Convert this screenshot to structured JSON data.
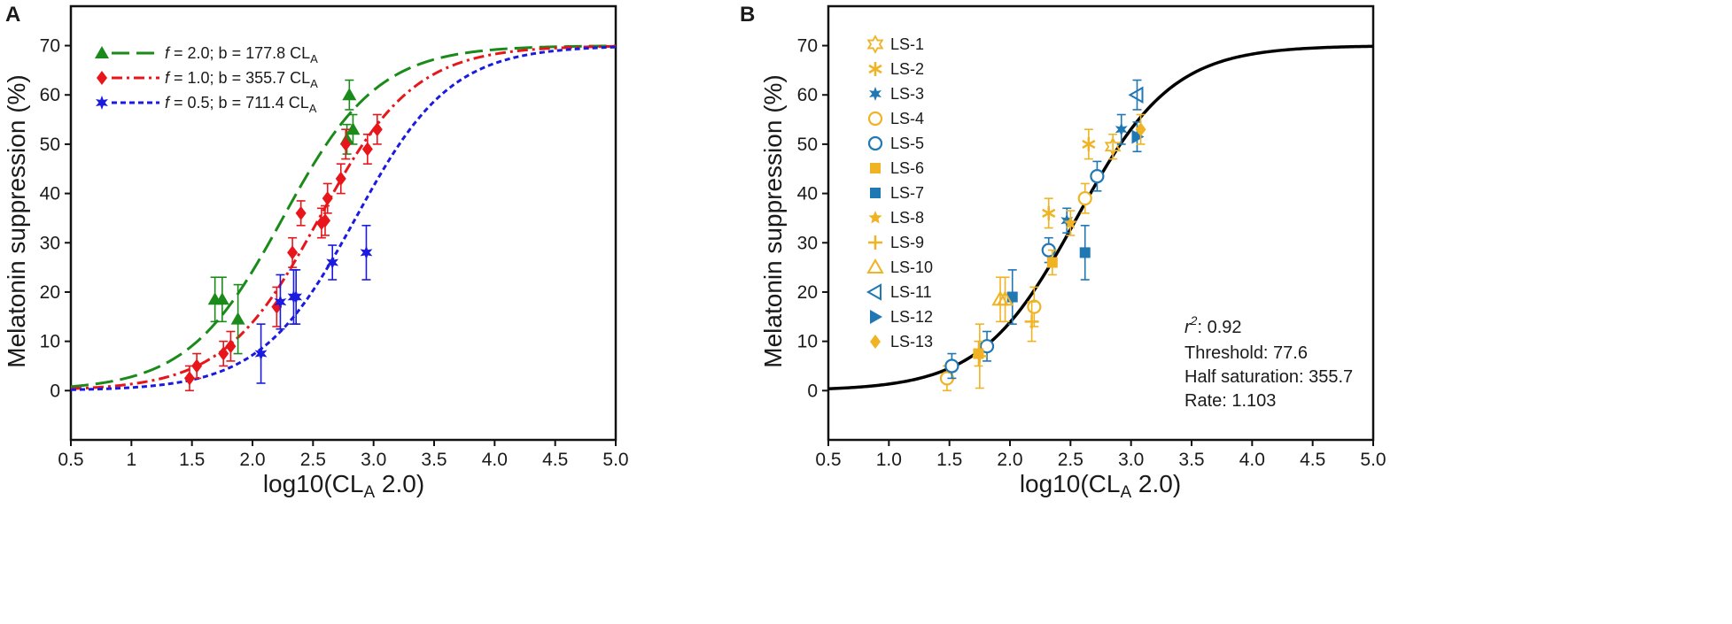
{
  "chart_data": [
    {
      "panel": "A",
      "type": "scatter",
      "xlabel": "log10(CLA 2.0)",
      "ylabel": "Melatonin suppression (%)",
      "xlim": [
        0.5,
        5.0
      ],
      "ylim": [
        -10,
        78
      ],
      "xticks": [
        "0.5",
        "1",
        "1.5",
        "2.0",
        "2.5",
        "3.0",
        "3.5",
        "4.0",
        "4.5",
        "5.0"
      ],
      "yticks": [
        "0",
        "10",
        "20",
        "30",
        "40",
        "50",
        "60",
        "70"
      ],
      "legend_position": "top-left",
      "curve_model": {
        "max": 70,
        "rate": 1.103
      },
      "series": [
        {
          "label": "f = 2.0; b = 177.8 CLA",
          "label_parts": [
            "f",
            " = 2.0; b = 177.8 CL",
            "A"
          ],
          "half_saturation": 177.8,
          "color": "#1a8a1a",
          "marker": "triangle",
          "dash": "long-dash",
          "points": [
            {
              "x": 1.69,
              "y": 18.5,
              "err": 4.5
            },
            {
              "x": 1.75,
              "y": 18.5,
              "err": 4.5
            },
            {
              "x": 1.88,
              "y": 14.5,
              "err": 7
            },
            {
              "x": 2.78,
              "y": 51,
              "err": 3
            },
            {
              "x": 2.8,
              "y": 60,
              "err": 3
            },
            {
              "x": 2.83,
              "y": 53,
              "err": 3
            }
          ]
        },
        {
          "label": "f = 1.0; b = 355.7 CLA",
          "label_parts": [
            "f",
            " = 1.0; b = 355.7 CL",
            "A"
          ],
          "half_saturation": 355.7,
          "color": "#e8161b",
          "marker": "diamond",
          "dash": "dash-dot",
          "points": [
            {
              "x": 1.48,
              "y": 2.5,
              "err": 2.5
            },
            {
              "x": 1.54,
              "y": 5,
              "err": 2.5
            },
            {
              "x": 1.76,
              "y": 7.5,
              "err": 2.5
            },
            {
              "x": 1.82,
              "y": 9,
              "err": 3
            },
            {
              "x": 2.2,
              "y": 17,
              "err": 4
            },
            {
              "x": 2.33,
              "y": 28,
              "err": 3
            },
            {
              "x": 2.4,
              "y": 36,
              "err": 2.5
            },
            {
              "x": 2.57,
              "y": 34,
              "err": 3
            },
            {
              "x": 2.6,
              "y": 34.5,
              "err": 3
            },
            {
              "x": 2.62,
              "y": 39,
              "err": 3
            },
            {
              "x": 2.73,
              "y": 43,
              "err": 3
            },
            {
              "x": 2.77,
              "y": 50,
              "err": 3
            },
            {
              "x": 2.95,
              "y": 49,
              "err": 3
            },
            {
              "x": 3.03,
              "y": 53,
              "err": 3
            }
          ]
        },
        {
          "label": "f = 0.5; b = 711.4 CLA",
          "label_parts": [
            "f",
            " = 0.5; b = 711.4 CL",
            "A"
          ],
          "half_saturation": 711.4,
          "color": "#1a1ae0",
          "marker": "star",
          "dash": "dotted",
          "points": [
            {
              "x": 2.07,
              "y": 7.5,
              "err": 6
            },
            {
              "x": 2.23,
              "y": 18,
              "err": 5.5
            },
            {
              "x": 2.34,
              "y": 19,
              "err": 5.5
            },
            {
              "x": 2.36,
              "y": 19,
              "err": 5.5
            },
            {
              "x": 2.66,
              "y": 26,
              "err": 3.5
            },
            {
              "x": 2.94,
              "y": 28,
              "err": 5.5
            }
          ]
        }
      ]
    },
    {
      "panel": "B",
      "type": "scatter",
      "xlabel": "log10(CLA 2.0)",
      "ylabel": "Melatonin suppression (%)",
      "xlim": [
        0.5,
        5.0
      ],
      "ylim": [
        -10,
        78
      ],
      "xticks": [
        "0.5",
        "1.0",
        "1.5",
        "2.0",
        "2.5",
        "3.0",
        "3.5",
        "4.0",
        "4.5",
        "5.0"
      ],
      "yticks": [
        "0",
        "10",
        "20",
        "30",
        "40",
        "50",
        "60",
        "70"
      ],
      "legend_position": "top-left",
      "fit": {
        "max": 70,
        "half_saturation": 355.7,
        "rate": 1.103,
        "color": "#000000"
      },
      "stats": {
        "r2_label": "r",
        "r2_sup": "2",
        "r2_value": ": 0.92",
        "threshold": "Threshold: 77.6",
        "half_saturation": "Half saturation: 355.7",
        "rate": "Rate: 1.103"
      },
      "series": [
        {
          "label": "LS-1",
          "color": "#f0b323",
          "marker": "hexagram-open",
          "points": [
            {
              "x": 2.85,
              "y": 49.5,
              "err": 2.5
            }
          ]
        },
        {
          "label": "LS-2",
          "color": "#f0b323",
          "marker": "asterisk",
          "points": [
            {
              "x": 2.32,
              "y": 36,
              "err": 3
            },
            {
              "x": 2.65,
              "y": 50,
              "err": 3
            }
          ]
        },
        {
          "label": "LS-3",
          "color": "#1f77b4",
          "marker": "star6",
          "points": [
            {
              "x": 2.47,
              "y": 34.5,
              "err": 2.5
            },
            {
              "x": 2.92,
              "y": 53,
              "err": 3
            }
          ]
        },
        {
          "label": "LS-4",
          "color": "#f0b323",
          "marker": "circle-open",
          "points": [
            {
              "x": 1.48,
              "y": 2.5,
              "err": 2.5
            },
            {
              "x": 2.2,
              "y": 17,
              "err": 4
            },
            {
              "x": 2.62,
              "y": 39,
              "err": 3
            }
          ]
        },
        {
          "label": "LS-5",
          "color": "#1f77b4",
          "marker": "circle-open",
          "points": [
            {
              "x": 1.52,
              "y": 5,
              "err": 2.5
            },
            {
              "x": 1.81,
              "y": 9,
              "err": 3
            },
            {
              "x": 2.32,
              "y": 28.5,
              "err": 2.5
            },
            {
              "x": 2.72,
              "y": 43.5,
              "err": 3
            }
          ]
        },
        {
          "label": "LS-6",
          "color": "#f0b323",
          "marker": "square",
          "points": [
            {
              "x": 1.74,
              "y": 7.5,
              "err": 2.5
            },
            {
              "x": 2.35,
              "y": 26,
              "err": 2.5
            }
          ]
        },
        {
          "label": "LS-7",
          "color": "#1f77b4",
          "marker": "square",
          "points": [
            {
              "x": 2.02,
              "y": 19,
              "err": 5.5
            },
            {
              "x": 2.62,
              "y": 28,
              "err": 5.5
            }
          ]
        },
        {
          "label": "LS-8",
          "color": "#f0b323",
          "marker": "star5",
          "points": [
            {
              "x": 2.5,
              "y": 34,
              "err": 2.5
            }
          ]
        },
        {
          "label": "LS-9",
          "color": "#f0b323",
          "marker": "plus",
          "points": [
            {
              "x": 1.75,
              "y": 7,
              "err": 6.5
            },
            {
              "x": 2.18,
              "y": 14,
              "err": 4
            }
          ]
        },
        {
          "label": "LS-10",
          "color": "#f0b323",
          "marker": "triangle-open",
          "points": [
            {
              "x": 1.92,
              "y": 18.5,
              "err": 4.5
            },
            {
              "x": 1.96,
              "y": 18.5,
              "err": 4.5
            }
          ]
        },
        {
          "label": "LS-11",
          "color": "#1f77b4",
          "marker": "triangle-left-open",
          "points": [
            {
              "x": 3.05,
              "y": 60,
              "err": 3
            }
          ]
        },
        {
          "label": "LS-12",
          "color": "#1f77b4",
          "marker": "triangle-right",
          "points": [
            {
              "x": 3.05,
              "y": 51.5,
              "err": 3
            }
          ]
        },
        {
          "label": "LS-13",
          "color": "#f0b323",
          "marker": "diamond",
          "points": [
            {
              "x": 3.08,
              "y": 53,
              "err": 3
            }
          ]
        }
      ]
    }
  ]
}
